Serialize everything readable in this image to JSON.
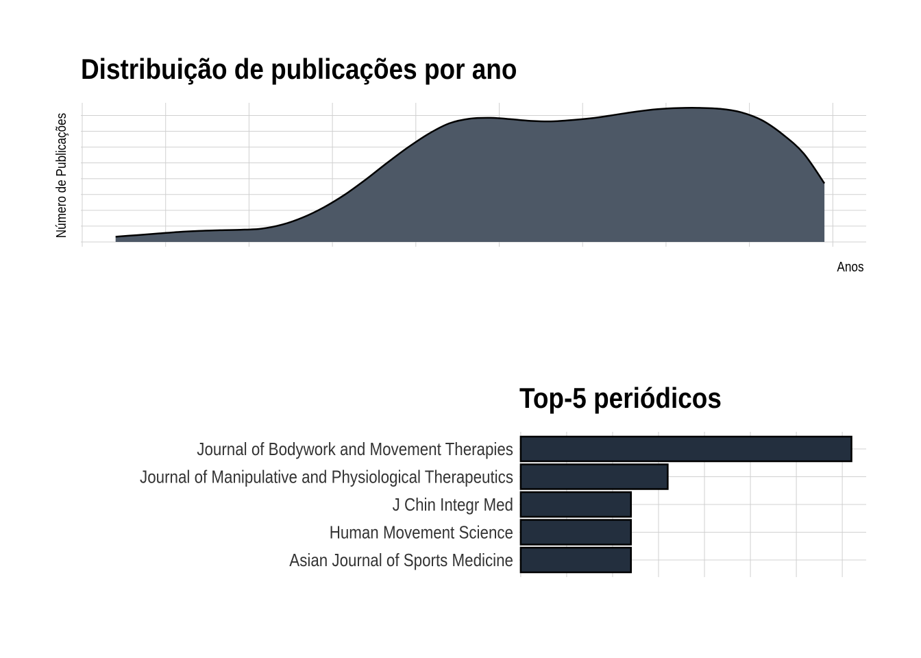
{
  "chart_data": [
    {
      "type": "area",
      "title": "Distribuição de publicações por ano",
      "xlabel": "Anos",
      "ylabel": "Número de Publicações",
      "x": [
        0,
        0.25,
        0.5,
        0.75,
        1.0,
        1.25,
        1.5,
        1.75,
        2.0,
        2.25,
        2.5,
        2.75,
        3.0,
        3.25,
        3.5,
        3.75,
        4.0,
        4.25,
        4.5,
        4.75,
        5.0,
        5.25,
        5.5,
        5.75,
        6.0,
        6.25,
        6.5,
        6.75,
        7.0,
        7.25,
        7.5,
        7.75,
        8.0,
        8.25,
        8.5
      ],
      "values": [
        0.33,
        0.43,
        0.53,
        0.63,
        0.7,
        0.74,
        0.77,
        0.84,
        1.1,
        1.56,
        2.2,
        3.0,
        3.95,
        4.98,
        5.96,
        6.83,
        7.5,
        7.8,
        7.85,
        7.76,
        7.65,
        7.63,
        7.72,
        7.85,
        8.05,
        8.25,
        8.4,
        8.47,
        8.48,
        8.42,
        8.2,
        7.7,
        6.8,
        5.6,
        3.7
      ],
      "xlim": [
        -0.4,
        9.0
      ],
      "ylim": [
        0,
        8.8
      ],
      "x_gridlines": [
        -0.4,
        0.6,
        1.6,
        2.6,
        3.6,
        4.6,
        5.6,
        6.6,
        7.6,
        8.6
      ],
      "y_gridlines": [
        0,
        1,
        2,
        3,
        4,
        5,
        6,
        7,
        8
      ],
      "grid": true,
      "fill_color": "#4d5866",
      "line_color": "#000000"
    },
    {
      "type": "bar",
      "orientation": "horizontal",
      "title": "Top-5 periódicos",
      "categories": [
        "Journal of Bodywork and Movement Therapies",
        "Journal of Manipulative and Physiological Therapeutics",
        "J Chin Integr Med",
        "Human Movement Science",
        "Asian Journal of Sports Medicine"
      ],
      "values": [
        9,
        4,
        3,
        3,
        3
      ],
      "xlim": [
        -0.035,
        9.4
      ],
      "x_gridlines": [
        0,
        1.25,
        2.5,
        3.75,
        5,
        6.25,
        7.5,
        8.75
      ],
      "grid": true,
      "bar_color": "#232f3e",
      "edge_color": "#000000"
    }
  ]
}
